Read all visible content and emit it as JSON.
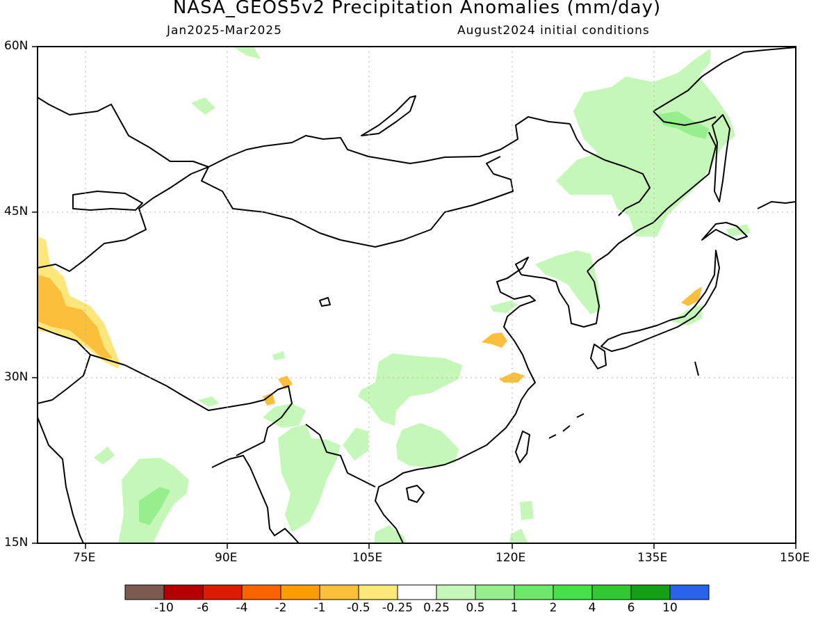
{
  "title": "NASA_GEOS5v2 Precipitation Anomalies (mm/day)",
  "subtitle_left": "Jan2025-Mar2025",
  "subtitle_right": "August2024 initial conditions",
  "lat_ticks": [
    "60N",
    "45N",
    "30N",
    "15N"
  ],
  "lon_ticks": [
    "75E",
    "90E",
    "105E",
    "120E",
    "135E",
    "150E"
  ],
  "colorbar": {
    "labels": [
      "-10",
      "-6",
      "-4",
      "-2",
      "-1",
      "-0.5",
      "-0.25",
      "0.25",
      "0.5",
      "1",
      "2",
      "4",
      "6",
      "10"
    ],
    "colors": [
      "#7b5a4f",
      "#b40000",
      "#dc1c00",
      "#fa6400",
      "#fb9c00",
      "#fcbf3c",
      "#fde67a",
      "#ffffff",
      "#c4f7b8",
      "#96ee8c",
      "#6ee868",
      "#48e048",
      "#32c832",
      "#14a014",
      "#2864e8"
    ]
  },
  "map_data": {
    "extent": {
      "lon": [
        70,
        150
      ],
      "lat": [
        15,
        60
      ]
    },
    "anomaly_regions": [
      {
        "name": "pakistan-afghanistan-dry",
        "level": "-1"
      },
      {
        "name": "yangtze-dry",
        "level": "-0.5"
      },
      {
        "name": "southern-china-wet",
        "level": "0.5"
      },
      {
        "name": "india-wet",
        "level": "0.5"
      },
      {
        "name": "manchuria-wet",
        "level": "0.5"
      },
      {
        "name": "okhotsk-wet",
        "level": "1"
      }
    ]
  }
}
